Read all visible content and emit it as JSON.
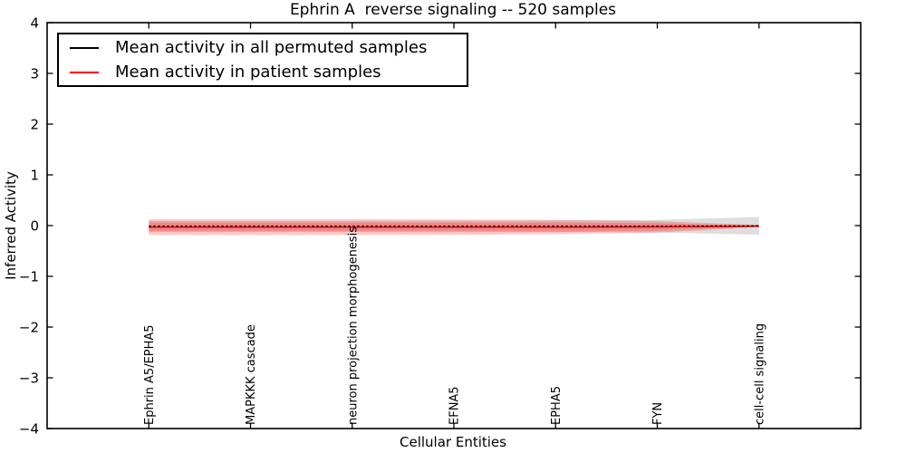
{
  "chart_data": {
    "type": "line",
    "title": "Ephrin A  reverse signaling -- 520 samples",
    "xlabel": "Cellular Entities",
    "ylabel": "Inferred Activity",
    "ylim": [
      -4,
      4
    ],
    "yticks": [
      4,
      3,
      2,
      1,
      0,
      -1,
      -2,
      -3,
      -4
    ],
    "ytick_labels": [
      "4",
      "3",
      "2",
      "1",
      "0",
      "−1",
      "−2",
      "−3",
      "−4"
    ],
    "categories": [
      "Ephrin A5/EPHA5",
      "MAPKKK cascade",
      "neuron projection morphogenesis",
      "EFNA5",
      "EPHA5",
      "FYN",
      "cell-cell signaling"
    ],
    "x": [
      0,
      1,
      2,
      3,
      4,
      5,
      6
    ],
    "xlim": [
      -1,
      7
    ],
    "grid": false,
    "legend_position": "upper left",
    "series": [
      {
        "name": "Mean activity in all permuted samples",
        "color": "#000000",
        "line_style": "dashed",
        "values": [
          -0.01,
          -0.01,
          -0.01,
          -0.01,
          -0.01,
          -0.01,
          -0.005
        ],
        "band": {
          "halfwidths": [
            0.105,
            0.105,
            0.105,
            0.105,
            0.11,
            0.125,
            0.175
          ],
          "color": "rgba(0,0,0,0.13)"
        }
      },
      {
        "name": "Mean activity in patient samples",
        "color": "#ff0000",
        "line_style": "solid",
        "values": [
          -0.03,
          -0.03,
          -0.03,
          -0.03,
          -0.03,
          -0.025,
          -0.01
        ],
        "band": {
          "halfwidths": [
            0.155,
            0.155,
            0.155,
            0.15,
            0.14,
            0.115,
            0.02
          ],
          "color": "rgba(255,0,0,0.22)"
        },
        "band_inner": {
          "halfwidths": [
            0.09,
            0.09,
            0.09,
            0.09,
            0.09,
            0.075,
            0.012
          ],
          "color": "rgba(255,0,0,0.20)"
        }
      }
    ]
  }
}
